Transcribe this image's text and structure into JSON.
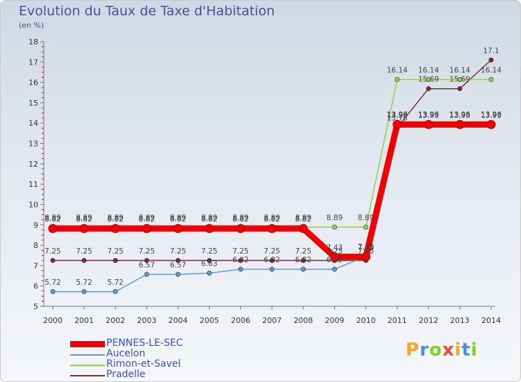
{
  "chart_data": {
    "type": "line",
    "title": "Evolution du Taux de Taxe d'Habitation",
    "subtitle": "(en %)",
    "xlabel": "",
    "ylabel": "",
    "x": [
      "2000",
      "2001",
      "2002",
      "2003",
      "2004",
      "2005",
      "2006",
      "2007",
      "2008",
      "2009",
      "2010",
      "2011",
      "2012",
      "2013",
      "2014"
    ],
    "ylim": [
      5,
      18
    ],
    "yticks": [
      "5",
      "6",
      "7",
      "8",
      "9",
      "10",
      "11",
      "12",
      "13",
      "14",
      "15",
      "16",
      "17",
      "18"
    ],
    "series": [
      {
        "name": "PENNES-LE-SEC",
        "color": "#ee0000",
        "values": [
          8.82,
          8.82,
          8.82,
          8.82,
          8.82,
          8.82,
          8.82,
          8.82,
          8.82,
          7.43,
          7.43,
          13.93,
          13.93,
          13.93,
          13.93
        ],
        "labels": [
          "8.82",
          "8.82",
          "8.82",
          "8.82",
          "8.82",
          "8.82",
          "8.82",
          "8.82",
          "8.82",
          "7.43",
          "7.43",
          "13.93",
          "13.93",
          "13.93",
          "13.93"
        ]
      },
      {
        "name": "Aucelon",
        "color": "#5b9bd5",
        "values": [
          5.72,
          5.72,
          5.72,
          6.57,
          6.57,
          6.63,
          6.82,
          6.82,
          6.82,
          6.82,
          7.46,
          13.96,
          13.96,
          13.96,
          13.96
        ],
        "labels": [
          "5.72",
          "5.72",
          "5.72",
          "6.57",
          "6.57",
          "6.63",
          "6.82",
          "6.82",
          "6.82",
          "6.82",
          "7.46",
          "13.96",
          "13.96",
          "13.96",
          "13.96"
        ]
      },
      {
        "name": "Rimon-et-Savel",
        "color": "#8fd14f",
        "values": [
          8.89,
          8.89,
          8.89,
          8.89,
          8.89,
          8.89,
          8.89,
          8.89,
          8.89,
          8.89,
          8.89,
          16.14,
          16.14,
          16.14,
          16.14
        ],
        "labels": [
          "8.89",
          "8.89",
          "8.89",
          "8.89",
          "8.89",
          "8.89",
          "8.89",
          "8.89",
          "8.89",
          "8.89",
          "8.89",
          "16.14",
          "16.14",
          "16.14",
          "16.14"
        ]
      },
      {
        "name": "Pradelle",
        "color": "#7a2a36",
        "values": [
          7.25,
          7.25,
          7.25,
          7.25,
          7.25,
          7.25,
          7.25,
          7.25,
          7.25,
          7.25,
          7.25,
          13.78,
          15.69,
          15.69,
          17.1
        ],
        "labels": [
          "7.25",
          "7.25",
          "7.25",
          "7.25",
          "7.25",
          "7.25",
          "7.25",
          "7.25",
          "7.25",
          "7.25",
          "7.25",
          "13.78",
          "15.69",
          "15.69",
          "17.1"
        ]
      }
    ],
    "grid": false,
    "legend": "bottom-left"
  },
  "logo": {
    "letters": [
      "P",
      "r",
      "o",
      "x",
      "i",
      "t",
      "i"
    ],
    "colors": [
      "#f5a623",
      "#4a90e2",
      "#7ed321",
      "#e94e2a",
      "#f5a623",
      "#4a90e2",
      "#7ed321"
    ]
  }
}
